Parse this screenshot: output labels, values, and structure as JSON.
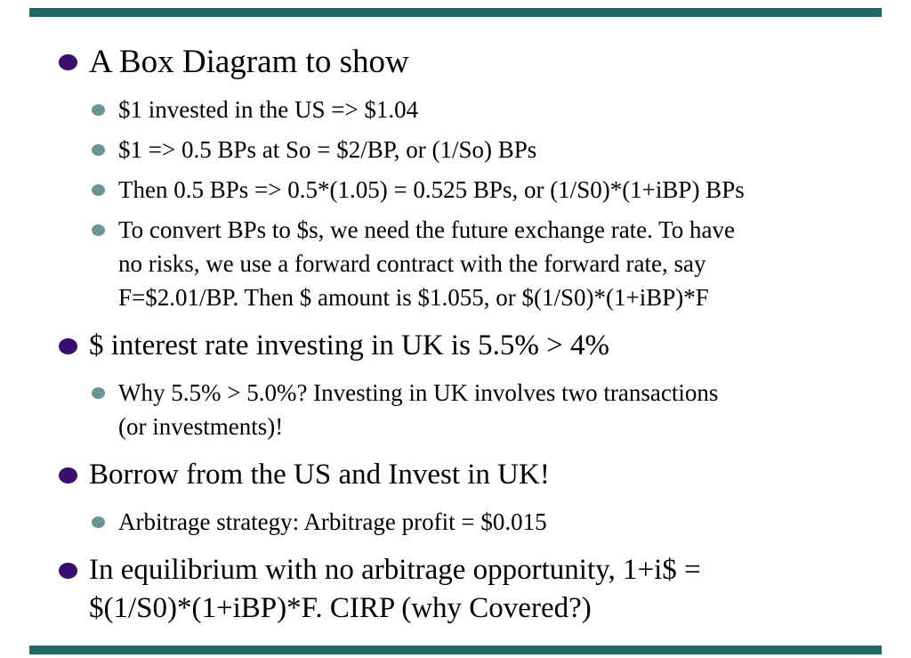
{
  "slide": {
    "kind": "presentation-slide",
    "background": "#FFFFFF",
    "accent_bar_color": "#1F6868",
    "bullet_level1_color": "#3A0E6E",
    "bullet_level2_color": "#6B9494",
    "text_color": "#000000"
  },
  "content": {
    "items": [
      {
        "level": 1,
        "text": "A Box Diagram to show"
      },
      {
        "level": 2,
        "text": "$1 invested in the US => $1.04"
      },
      {
        "level": 2,
        "text": "$1 => 0.5 BPs at So = $2/BP, or (1/So) BPs"
      },
      {
        "level": 2,
        "text": "Then 0.5 BPs => 0.5*(1.05) = 0.525 BPs, or (1/S0)*(1+iBP) BPs"
      },
      {
        "level": 2,
        "lines": [
          "To convert BPs to $s, we need the future exchange rate. To have",
          "no risks, we use a forward contract with the forward rate, say",
          "F=$2.01/BP. Then $ amount is $1.055, or $(1/S0)*(1+iBP)*F"
        ]
      },
      {
        "level": 1,
        "text": "$ interest rate investing in UK is 5.5% > 4%"
      },
      {
        "level": 2,
        "lines": [
          "Why 5.5% > 5.0%? Investing in UK involves two transactions",
          "(or investments)!"
        ]
      },
      {
        "level": 1,
        "text": "Borrow from the US and Invest in UK!"
      },
      {
        "level": 2,
        "text": "Arbitrage strategy: Arbitrage profit = $0.015"
      },
      {
        "level": 1,
        "lines": [
          "In equilibrium with no arbitrage opportunity, 1+i$ =",
          "$(1/S0)*(1+iBP)*F. CIRP (why Covered?)"
        ]
      }
    ]
  }
}
